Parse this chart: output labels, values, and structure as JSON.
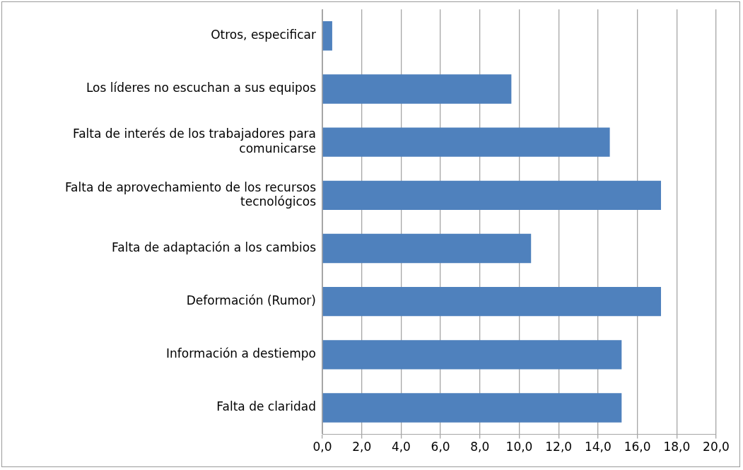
{
  "chart_data": {
    "type": "bar",
    "orientation": "horizontal",
    "categories": [
      "Otros, especificar",
      "Los líderes no escuchan a sus equipos",
      "Falta de interés de los trabajadores para comunicarse",
      "Falta de aprovechamiento de los recursos tecnológicos",
      "Falta de adaptación a los cambios",
      "Deformación (Rumor)",
      "Información a destiempo",
      "Falta de claridad"
    ],
    "values": [
      0.5,
      9.6,
      14.6,
      17.2,
      10.6,
      17.2,
      15.2,
      15.2
    ],
    "color": "#4f81bd",
    "xlim": [
      0,
      20
    ],
    "xticks": [
      {
        "value": 0,
        "label": "0,0"
      },
      {
        "value": 2,
        "label": "2,0"
      },
      {
        "value": 4,
        "label": "4,0"
      },
      {
        "value": 6,
        "label": "6,0"
      },
      {
        "value": 8,
        "label": "8,0"
      },
      {
        "value": 10,
        "label": "10,0"
      },
      {
        "value": 12,
        "label": "12,0"
      },
      {
        "value": 14,
        "label": "14,0"
      },
      {
        "value": 16,
        "label": "16,0"
      },
      {
        "value": 18,
        "label": "18,0"
      },
      {
        "value": 20,
        "label": "20,0"
      }
    ],
    "grid": "x",
    "legend": false
  }
}
